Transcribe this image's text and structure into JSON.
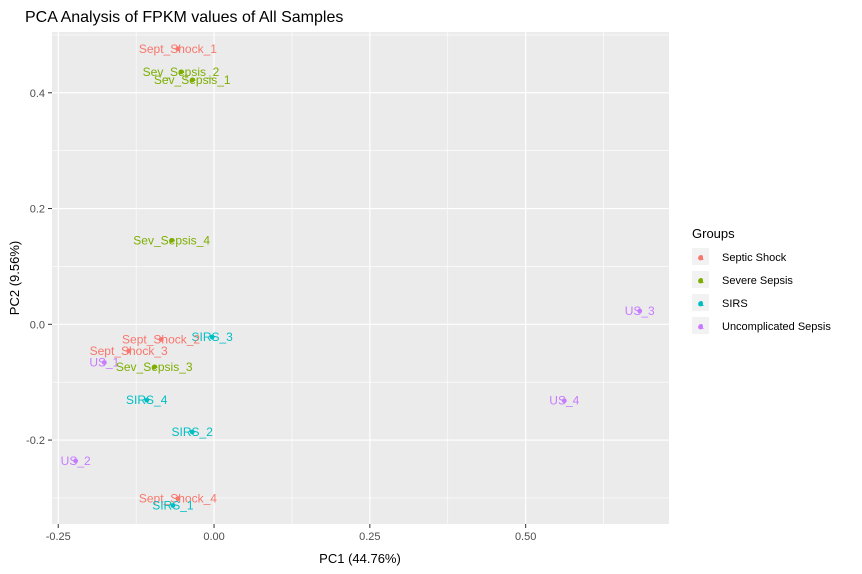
{
  "chart_data": {
    "type": "scatter",
    "title": "PCA Analysis of FPKM values of All Samples",
    "xlabel": "PC1 (44.76%)",
    "ylabel": "PC2 (9.56%)",
    "xlim": [
      -0.26,
      0.73
    ],
    "ylim": [
      -0.345,
      0.505
    ],
    "x_ticks": [
      -0.25,
      0.0,
      0.25,
      0.5
    ],
    "x_tick_labels": [
      "-0.25",
      "0.00",
      "0.25",
      "0.50"
    ],
    "y_ticks": [
      -0.2,
      0.0,
      0.2,
      0.4
    ],
    "y_tick_labels": [
      "-0.2",
      "0.0",
      "0.2",
      "0.4"
    ],
    "grid": true,
    "legend": {
      "title": "Groups",
      "placement": "right",
      "entries": [
        "Septic Shock",
        "Severe Sepsis",
        "SIRS",
        "Uncomplicated Sepsis"
      ]
    },
    "colors": {
      "Septic Shock": "#F8766D",
      "Severe Sepsis": "#7CAE00",
      "SIRS": "#00BFC4",
      "Uncomplicated Sepsis": "#C77CFF"
    },
    "points": [
      {
        "label": "Sept_Shock_1",
        "group": "Septic Shock",
        "x": -0.058,
        "y": 0.476
      },
      {
        "label": "Sev_Sepsis_2",
        "group": "Severe Sepsis",
        "x": -0.053,
        "y": 0.436
      },
      {
        "label": "Sev_Sepsis_1",
        "group": "Severe Sepsis",
        "x": -0.035,
        "y": 0.422
      },
      {
        "label": "Sev_Sepsis_4",
        "group": "Severe Sepsis",
        "x": -0.068,
        "y": 0.145
      },
      {
        "label": "US_3",
        "group": "Uncomplicated Sepsis",
        "x": 0.683,
        "y": 0.023
      },
      {
        "label": "SIRS_3",
        "group": "SIRS",
        "x": -0.003,
        "y": -0.022
      },
      {
        "label": "Sept_Shock_2",
        "group": "Septic Shock",
        "x": -0.085,
        "y": -0.026
      },
      {
        "label": "Sept_Shock_3",
        "group": "Septic Shock",
        "x": -0.137,
        "y": -0.046
      },
      {
        "label": "US_1",
        "group": "Uncomplicated Sepsis",
        "x": -0.176,
        "y": -0.066
      },
      {
        "label": "Sev_Sepsis_3",
        "group": "Severe Sepsis",
        "x": -0.096,
        "y": -0.074
      },
      {
        "label": "SIRS_4",
        "group": "SIRS",
        "x": -0.108,
        "y": -0.131
      },
      {
        "label": "US_4",
        "group": "Uncomplicated Sepsis",
        "x": 0.562,
        "y": -0.132
      },
      {
        "label": "SIRS_2",
        "group": "SIRS",
        "x": -0.035,
        "y": -0.186
      },
      {
        "label": "US_2",
        "group": "Uncomplicated Sepsis",
        "x": -0.222,
        "y": -0.236
      },
      {
        "label": "Sept_Shock_4",
        "group": "Septic Shock",
        "x": -0.058,
        "y": -0.301
      },
      {
        "label": "SIRS_1",
        "group": "SIRS",
        "x": -0.066,
        "y": -0.313
      }
    ]
  }
}
